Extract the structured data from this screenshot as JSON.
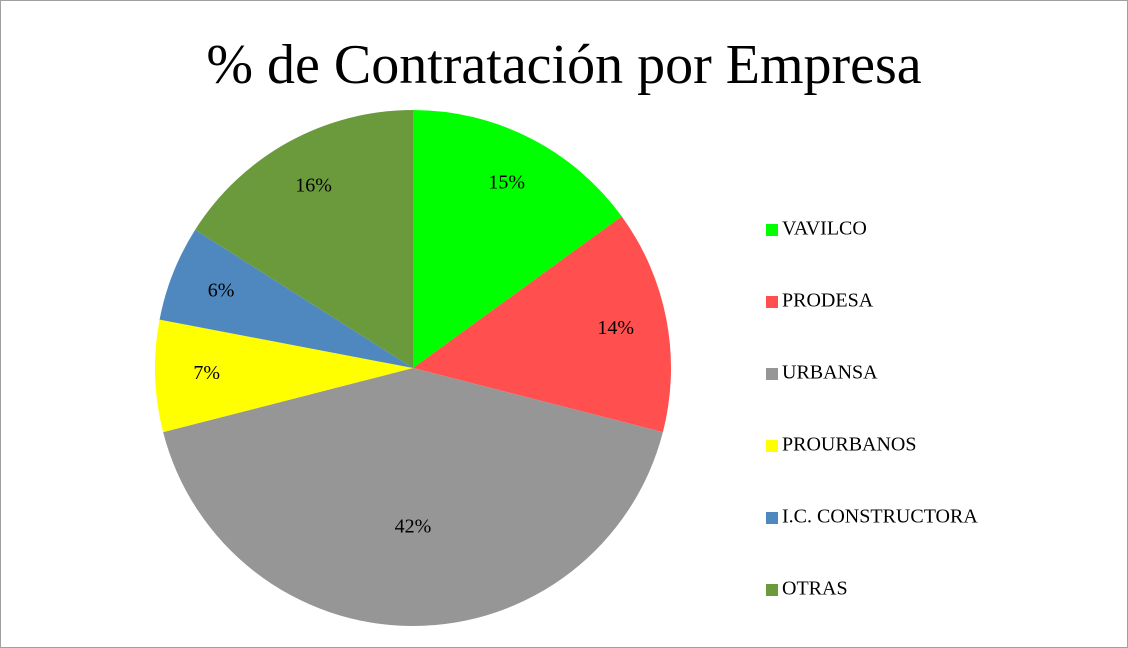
{
  "chart_data": {
    "type": "pie",
    "title": "% de Contratación por Empresa",
    "categories": [
      "VAVILCO",
      "PRODESA",
      "URBANSA",
      "PROURBANOS",
      "I.C. CONSTRUCTORA",
      "OTRAS"
    ],
    "values": [
      15,
      14,
      42,
      7,
      6,
      16
    ],
    "value_labels": [
      "15%",
      "14%",
      "42%",
      "7%",
      "6%",
      "16%"
    ],
    "colors": [
      "#00ff00",
      "#ff4f4f",
      "#969696",
      "#ffff00",
      "#4f88bf",
      "#6a9a3c"
    ],
    "legend": "right"
  }
}
